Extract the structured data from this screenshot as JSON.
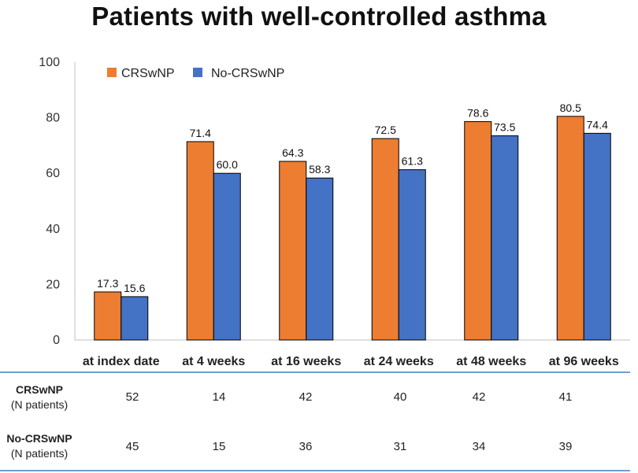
{
  "title": "Patients with well-controlled asthma",
  "colors": {
    "crswnp": "#ED7D31",
    "no_crswnp": "#4472C4",
    "table_rule": "#6F9FD0"
  },
  "chart_data": {
    "type": "bar",
    "title": "Patients with well-controlled asthma",
    "xlabel": "",
    "ylabel": "",
    "ylim": [
      0,
      100
    ],
    "yticks": [
      0,
      20,
      40,
      60,
      80,
      100
    ],
    "categories": [
      "at index date",
      "at 4 weeks",
      "at 16 weeks",
      "at 24 weeks",
      "at 48 weeks",
      "at 96 weeks"
    ],
    "series": [
      {
        "name": "CRSwNP",
        "values": [
          17.3,
          71.4,
          64.3,
          72.5,
          78.6,
          80.5
        ],
        "labels": [
          "17.3",
          "71.4",
          "64.3",
          "72.5",
          "78.6",
          "80.5"
        ]
      },
      {
        "name": "No-CRSwNP",
        "values": [
          15.6,
          60.0,
          58.3,
          61.3,
          73.5,
          74.4
        ],
        "labels": [
          "15.6",
          "60.0",
          "58.3",
          "61.3",
          "73.5",
          "74.4"
        ]
      }
    ],
    "legend": "top-left",
    "grid": false
  },
  "table": {
    "rows": [
      {
        "label": "CRSwNP",
        "sublabel": "(N patients)",
        "values": [
          "52",
          "14",
          "42",
          "40",
          "42",
          "41"
        ]
      },
      {
        "label": "No-CRSwNP",
        "sublabel": "(N patients)",
        "values": [
          "45",
          "15",
          "36",
          "31",
          "34",
          "39"
        ]
      }
    ]
  }
}
